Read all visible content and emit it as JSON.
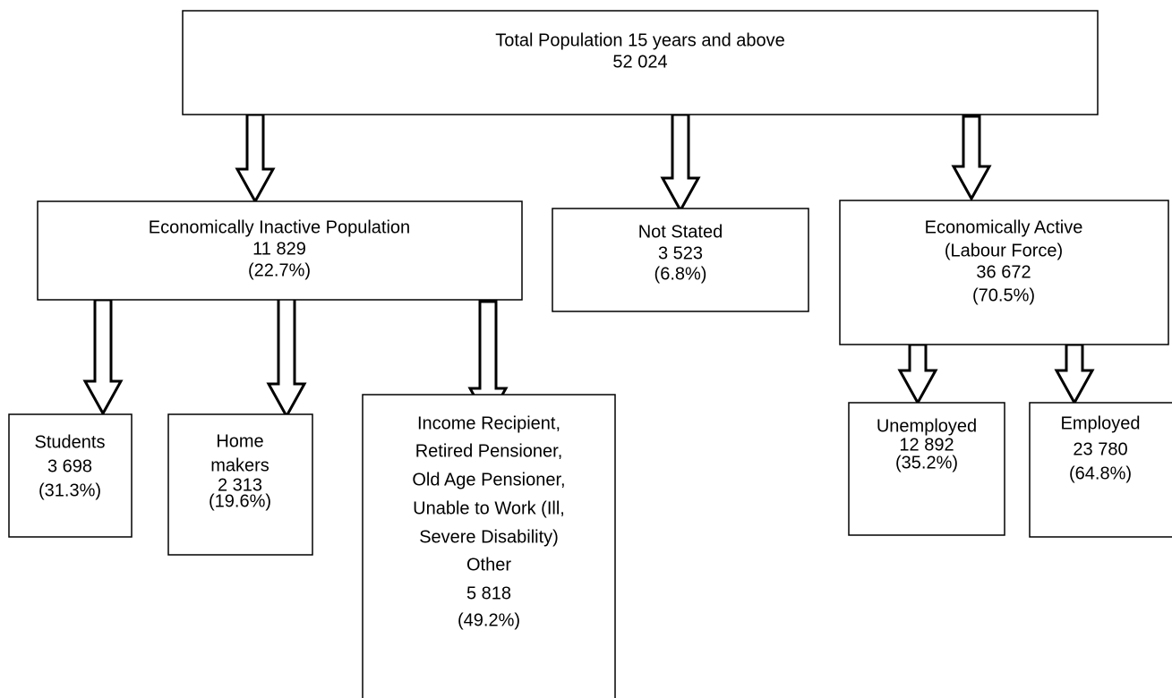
{
  "nodes": [
    {
      "lines": [
        "Total Population 15 years and above",
        "52 024"
      ]
    },
    {
      "lines": [
        "Economically Inactive Population",
        "11 829",
        "(22.7%)"
      ]
    },
    {
      "lines": [
        "Not Stated",
        "3 523",
        "(6.8%)"
      ]
    },
    {
      "lines": [
        "Economically Active",
        "(Labour Force)",
        "36 672",
        "(70.5%)"
      ]
    },
    {
      "lines": [
        "Students",
        "3 698",
        "(31.3%)"
      ]
    },
    {
      "lines": [
        "Home",
        "makers",
        "2 313",
        "(19.6%)"
      ]
    },
    {
      "lines": [
        "Income Recipient,",
        "Retired Pensioner,",
        "Old Age Pensioner,",
        "Unable to Work (Ill,",
        "Severe Disability)",
        "Other",
        "5 818",
        "(49.2%)"
      ]
    },
    {
      "lines": [
        "Unemployed",
        "12 892",
        "(35.2%)"
      ]
    },
    {
      "lines": [
        "Employed",
        "23 780",
        "(64.8%)"
      ]
    }
  ]
}
